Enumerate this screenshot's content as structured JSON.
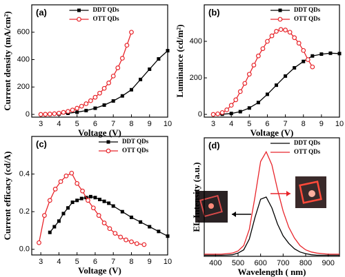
{
  "chart_data": [
    {
      "type": "line",
      "panel_label": "(a)",
      "xlabel": "Voltage (V)",
      "ylabel": "Current density (mA/cm²)",
      "xlim": [
        2.5,
        10
      ],
      "ylim": [
        -20,
        800
      ],
      "xticks": [
        3,
        4,
        5,
        6,
        7,
        8,
        9,
        10
      ],
      "yticks": [
        0,
        200,
        400,
        600
      ],
      "legend": "upper center",
      "series": [
        {
          "name": "DDT QDs",
          "color": "#000000",
          "marker": "square",
          "x": [
            3,
            3.5,
            4,
            4.5,
            5,
            5.5,
            6,
            6.5,
            7,
            7.5,
            8,
            8.5,
            9,
            9.5,
            10
          ],
          "values": [
            0,
            1,
            3,
            8,
            16,
            28,
            45,
            68,
            98,
            135,
            180,
            255,
            330,
            405,
            465
          ]
        },
        {
          "name": "OTT QDs",
          "color": "#e8242a",
          "marker": "circle",
          "x": [
            3,
            3.25,
            3.5,
            3.75,
            4,
            4.25,
            4.5,
            4.75,
            5,
            5.25,
            5.5,
            5.75,
            6,
            6.25,
            6.5,
            6.75,
            7,
            7.25,
            7.5,
            7.75,
            8
          ],
          "values": [
            0,
            1,
            3,
            5,
            9,
            15,
            22,
            32,
            45,
            60,
            78,
            100,
            125,
            155,
            190,
            230,
            280,
            340,
            410,
            505,
            600
          ]
        }
      ]
    },
    {
      "type": "line",
      "panel_label": "(b)",
      "xlabel": "Voltage (V)",
      "ylabel": "Luminance (cd/m²)",
      "xlim": [
        2.5,
        10
      ],
      "ylim": [
        -15,
        600
      ],
      "xticks": [
        3,
        4,
        5,
        6,
        7,
        8,
        9,
        10
      ],
      "yticks": [
        0,
        200,
        400
      ],
      "legend": "upper right",
      "series": [
        {
          "name": "DDT QDs",
          "color": "#000000",
          "marker": "square",
          "x": [
            3,
            3.5,
            4,
            4.5,
            5,
            5.5,
            6,
            6.5,
            7,
            7.5,
            8,
            8.5,
            9,
            9.5,
            10
          ],
          "values": [
            0,
            1,
            5,
            15,
            35,
            65,
            110,
            160,
            210,
            255,
            290,
            320,
            330,
            335,
            333
          ]
        },
        {
          "name": "OTT QDs",
          "color": "#e8242a",
          "marker": "circle",
          "x": [
            3,
            3.25,
            3.5,
            3.75,
            4,
            4.25,
            4.5,
            4.75,
            5,
            5.25,
            5.5,
            5.75,
            6,
            6.25,
            6.5,
            6.75,
            7,
            7.25,
            7.5,
            7.75,
            8,
            8.25,
            8.5
          ],
          "values": [
            0,
            3,
            10,
            25,
            50,
            80,
            125,
            170,
            220,
            270,
            320,
            360,
            400,
            430,
            455,
            465,
            462,
            450,
            420,
            390,
            350,
            300,
            260
          ]
        }
      ]
    },
    {
      "type": "line",
      "panel_label": "(c)",
      "xlabel": "Voltage (V)",
      "ylabel": "Current efficacy (cd/A)",
      "xlim": [
        2.5,
        10
      ],
      "ylim": [
        -0.03,
        0.6
      ],
      "xticks": [
        3,
        4,
        5,
        6,
        7,
        8,
        9,
        10
      ],
      "yticks": [
        {
          "value": 0,
          "label": "0.0"
        },
        0.2,
        0.4
      ],
      "legend": "upper right",
      "series": [
        {
          "name": "DDT QDs",
          "color": "#000000",
          "marker": "square",
          "x": [
            3.5,
            3.75,
            4,
            4.25,
            4.5,
            4.75,
            5,
            5.25,
            5.5,
            5.75,
            6,
            6.25,
            6.5,
            6.75,
            7,
            7.5,
            8,
            8.5,
            9,
            9.5,
            10
          ],
          "values": [
            0.09,
            0.12,
            0.15,
            0.19,
            0.22,
            0.25,
            0.26,
            0.27,
            0.275,
            0.28,
            0.275,
            0.265,
            0.255,
            0.245,
            0.23,
            0.2,
            0.17,
            0.145,
            0.12,
            0.095,
            0.07
          ]
        },
        {
          "name": "OTT QDs",
          "color": "#e8242a",
          "marker": "circle",
          "x": [
            2.9,
            3.2,
            3.5,
            3.8,
            4.1,
            4.4,
            4.7,
            5,
            5.3,
            5.6,
            5.9,
            6.2,
            6.5,
            6.8,
            7.1,
            7.4,
            7.7,
            8,
            8.3,
            8.7
          ],
          "values": [
            0.035,
            0.18,
            0.26,
            0.32,
            0.36,
            0.39,
            0.405,
            0.35,
            0.31,
            0.26,
            0.22,
            0.18,
            0.14,
            0.11,
            0.085,
            0.065,
            0.05,
            0.04,
            0.03,
            0.025
          ]
        }
      ]
    },
    {
      "type": "line",
      "panel_label": "(d)",
      "xlabel": "Wavelength ( nm)",
      "ylabel": "EL Intensity (a.u.)",
      "xlim": [
        350,
        950
      ],
      "ylim": [
        0,
        1.1
      ],
      "xticks": [
        400,
        500,
        600,
        700,
        800,
        900
      ],
      "legend": "upper right",
      "series": [
        {
          "name": "DDT QDs",
          "color": "#000000",
          "x": [
            350,
            375,
            400,
            425,
            450,
            475,
            500,
            525,
            550,
            575,
            600,
            625,
            650,
            675,
            700,
            725,
            750,
            775,
            800,
            825,
            850,
            875,
            900,
            925,
            950
          ],
          "values": [
            0.01,
            0.01,
            0.01,
            0.01,
            0.012,
            0.015,
            0.03,
            0.06,
            0.16,
            0.36,
            0.53,
            0.55,
            0.45,
            0.3,
            0.19,
            0.12,
            0.07,
            0.04,
            0.025,
            0.015,
            0.01,
            0.01,
            0.01,
            0.01,
            0.01
          ]
        },
        {
          "name": "OTT QDs",
          "color": "#e8242a",
          "x": [
            350,
            375,
            400,
            425,
            450,
            475,
            500,
            525,
            550,
            575,
            600,
            625,
            650,
            675,
            700,
            725,
            750,
            775,
            800,
            825,
            850,
            875,
            900,
            925,
            950
          ],
          "values": [
            0.02,
            0.02,
            0.02,
            0.02,
            0.025,
            0.03,
            0.05,
            0.1,
            0.25,
            0.55,
            0.88,
            0.97,
            0.85,
            0.62,
            0.42,
            0.27,
            0.17,
            0.1,
            0.06,
            0.04,
            0.03,
            0.025,
            0.02,
            0.02,
            0.02
          ]
        }
      ]
    }
  ]
}
